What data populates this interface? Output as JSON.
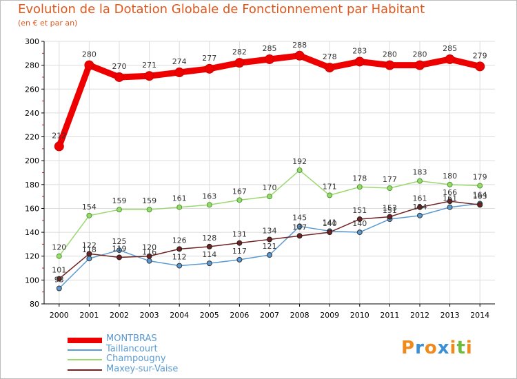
{
  "title": "Evolution de la Dotation Globale de Fonctionnement par Habitant",
  "subtitle": "(en € et par an)",
  "logo": {
    "letters": [
      "P",
      "r",
      "o",
      "x",
      "i",
      "t",
      "i"
    ],
    "colors": [
      "#f08a1c",
      "#3a8fd6",
      "#f08a1c",
      "#3a8fd6",
      "#f08a1c",
      "#6dbd3c",
      "#f08a1c"
    ]
  },
  "chart_data": {
    "type": "line",
    "title": "Evolution de la Dotation Globale de Fonctionnement par Habitant",
    "subtitle": "(en € et par an)",
    "xlabel": "",
    "ylabel": "",
    "x": [
      "2000",
      "2001",
      "2002",
      "2003",
      "2004",
      "2005",
      "2006",
      "2007",
      "2008",
      "2009",
      "2010",
      "2011",
      "2012",
      "2013",
      "2014"
    ],
    "ylim": [
      80,
      300
    ],
    "yticks": [
      80,
      100,
      120,
      140,
      160,
      180,
      200,
      220,
      240,
      260,
      280,
      300
    ],
    "grid": true,
    "legend_position": "bottom-left",
    "series": [
      {
        "name": "MONTBRAS",
        "color": "#ee0000",
        "values": [
          212,
          280,
          270,
          271,
          274,
          277,
          282,
          285,
          288,
          278,
          283,
          280,
          280,
          285,
          279
        ],
        "labels": [
          "212",
          "280",
          "270",
          "271",
          "274",
          "277",
          "282",
          "285",
          "288",
          "278",
          "283",
          "280",
          "280",
          "285",
          "279"
        ]
      },
      {
        "name": "Taillancourt",
        "color": "#5a9ad2",
        "values": [
          93,
          118,
          125,
          116,
          112,
          114,
          117,
          121,
          145,
          141,
          140,
          151,
          154,
          161,
          164
        ],
        "labels": [
          "93",
          "118",
          "125",
          "116",
          "112",
          "114",
          "117",
          "121",
          "145",
          "141",
          "140",
          "151",
          "154",
          "161",
          "164"
        ]
      },
      {
        "name": "Champougny",
        "color": "#9ad86e",
        "values": [
          120,
          154,
          159,
          159,
          161,
          163,
          167,
          170,
          192,
          171,
          178,
          177,
          183,
          180,
          179
        ],
        "labels": [
          "120",
          "154",
          "159",
          "159",
          "161",
          "163",
          "167",
          "170",
          "192",
          "171",
          "178",
          "177",
          "183",
          "180",
          "179"
        ]
      },
      {
        "name": "Maxey-sur-Vaise",
        "color": "#6e2222",
        "values": [
          101,
          122,
          119,
          120,
          126,
          128,
          131,
          134,
          137,
          140,
          151,
          153,
          161,
          166,
          163
        ],
        "labels": [
          "101",
          "122",
          "119",
          "120",
          "126",
          "128",
          "131",
          "134",
          "137",
          "140",
          "151",
          "153",
          "161",
          "166",
          "163"
        ]
      }
    ]
  }
}
